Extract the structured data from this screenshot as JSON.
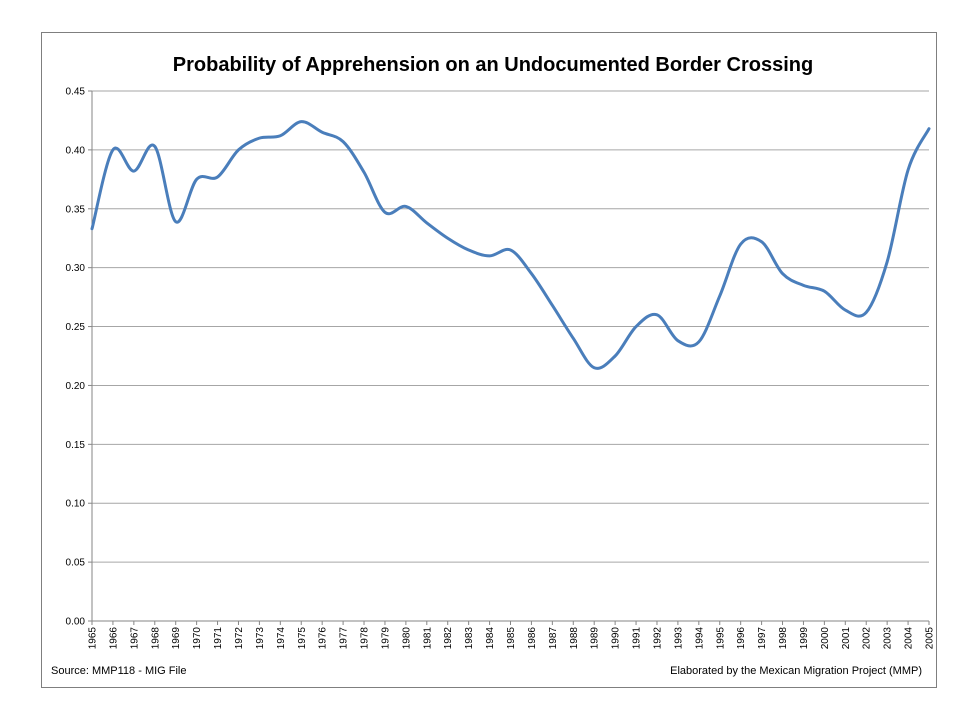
{
  "chart_data": {
    "type": "line",
    "title": "Probability of Apprehension on an Undocumented Border Crossing",
    "xlabel": "",
    "ylabel": "",
    "ylim": [
      0,
      0.45
    ],
    "y_ticks": [
      "0.00",
      "0.05",
      "0.10",
      "0.15",
      "0.20",
      "0.25",
      "0.30",
      "0.35",
      "0.40",
      "0.45"
    ],
    "grid": true,
    "legend": "none",
    "x": [
      "1965",
      "1966",
      "1967",
      "1968",
      "1969",
      "1970",
      "1971",
      "1972",
      "1973",
      "1974",
      "1975",
      "1976",
      "1977",
      "1978",
      "1979",
      "1980",
      "1981",
      "1982",
      "1983",
      "1984",
      "1985",
      "1986",
      "1987",
      "1988",
      "1989",
      "1990",
      "1991",
      "1992",
      "1993",
      "1994",
      "1995",
      "1996",
      "1997",
      "1998",
      "1999",
      "2000",
      "2001",
      "2002",
      "2003",
      "2004",
      "2005"
    ],
    "series": [
      {
        "values": [
          0.333,
          0.4,
          0.382,
          0.403,
          0.339,
          0.375,
          0.377,
          0.4,
          0.41,
          0.412,
          0.424,
          0.415,
          0.407,
          0.381,
          0.347,
          0.352,
          0.338,
          0.325,
          0.315,
          0.31,
          0.315,
          0.295,
          0.268,
          0.24,
          0.215,
          0.225,
          0.25,
          0.26,
          0.238,
          0.237,
          0.276,
          0.32,
          0.322,
          0.295,
          0.285,
          0.28,
          0.264,
          0.262,
          0.305,
          0.383,
          0.418
        ]
      }
    ],
    "source_note": "Source: MMP118 - MIG File",
    "credit_note": "Elaborated by the Mexican Migration Project (MMP)"
  },
  "style": {
    "line_color": "#4a7ebb",
    "grid_color": "#a6a6a6",
    "axis_color": "#868686",
    "frame_color": "#7f7f7f"
  }
}
